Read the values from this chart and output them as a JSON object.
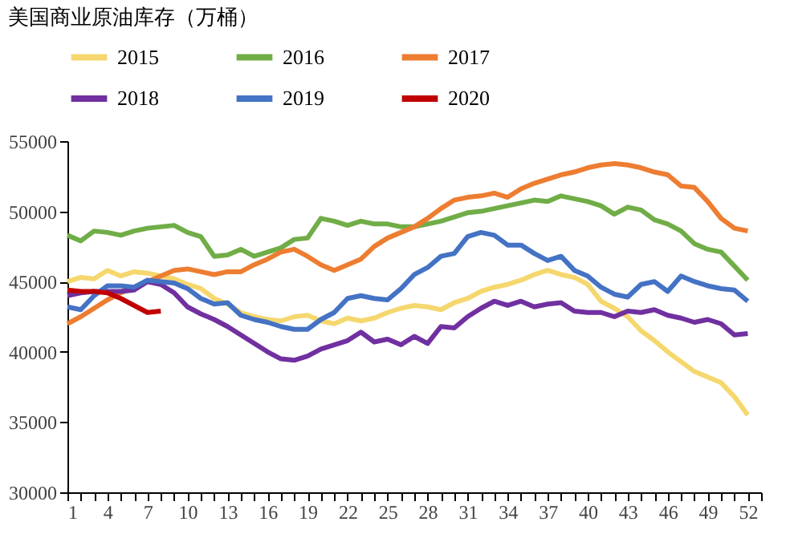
{
  "chart_data": {
    "type": "line",
    "title": "美国商业原油库存（万桶）",
    "legend": "top",
    "grid": false,
    "marker": "none",
    "line_style": "solid",
    "x": [
      1,
      2,
      3,
      4,
      5,
      6,
      7,
      8,
      9,
      10,
      11,
      12,
      13,
      14,
      15,
      16,
      17,
      18,
      19,
      20,
      21,
      22,
      23,
      24,
      25,
      26,
      27,
      28,
      29,
      30,
      31,
      32,
      33,
      34,
      35,
      36,
      37,
      38,
      39,
      40,
      41,
      42,
      43,
      44,
      45,
      46,
      47,
      48,
      49,
      50,
      51,
      52
    ],
    "xlim": [
      1,
      53
    ],
    "xticks": [
      1,
      {
        "value": 2,
        "label": null
      },
      {
        "value": 3,
        "label": null
      },
      4,
      {
        "value": 5,
        "label": null
      },
      {
        "value": 6,
        "label": null
      },
      7,
      {
        "value": 8,
        "label": null
      },
      {
        "value": 9,
        "label": null
      },
      10,
      {
        "value": 11,
        "label": null
      },
      {
        "value": 12,
        "label": null
      },
      13,
      {
        "value": 14,
        "label": null
      },
      {
        "value": 15,
        "label": null
      },
      16,
      {
        "value": 17,
        "label": null
      },
      {
        "value": 18,
        "label": null
      },
      19,
      {
        "value": 20,
        "label": null
      },
      {
        "value": 21,
        "label": null
      },
      22,
      {
        "value": 23,
        "label": null
      },
      {
        "value": 24,
        "label": null
      },
      25,
      {
        "value": 26,
        "label": null
      },
      {
        "value": 27,
        "label": null
      },
      28,
      {
        "value": 29,
        "label": null
      },
      {
        "value": 30,
        "label": null
      },
      31,
      {
        "value": 32,
        "label": null
      },
      {
        "value": 33,
        "label": null
      },
      34,
      {
        "value": 35,
        "label": null
      },
      {
        "value": 36,
        "label": null
      },
      37,
      {
        "value": 38,
        "label": null
      },
      {
        "value": 39,
        "label": null
      },
      40,
      {
        "value": 41,
        "label": null
      },
      {
        "value": 42,
        "label": null
      },
      43,
      {
        "value": 44,
        "label": null
      },
      {
        "value": 45,
        "label": null
      },
      46,
      {
        "value": 47,
        "label": null
      },
      {
        "value": 48,
        "label": null
      },
      49,
      {
        "value": 50,
        "label": null
      },
      {
        "value": 51,
        "label": null
      },
      52,
      {
        "value": 53,
        "label": null
      }
    ],
    "ylim": [
      30000,
      55000
    ],
    "yticks": [
      30000,
      35000,
      40000,
      45000,
      50000,
      55000
    ],
    "series": [
      {
        "name": "2015",
        "color": "#f5d76e",
        "values": [
          45000,
          45300,
          45200,
          45800,
          45400,
          45700,
          45600,
          45400,
          45200,
          44800,
          44500,
          43800,
          43400,
          42800,
          42500,
          42300,
          42200,
          42500,
          42600,
          42200,
          42000,
          42400,
          42200,
          42400,
          42800,
          43100,
          43300,
          43200,
          43000,
          43500,
          43800,
          44300,
          44600,
          44800,
          45100,
          45500,
          45800,
          45500,
          45300,
          44800,
          43600,
          43100,
          42500,
          41500,
          40800,
          40000,
          39300,
          38600,
          38200,
          37800,
          36800,
          35500
        ]
      },
      {
        "name": "2016",
        "color": "#70ad47",
        "values": [
          48300,
          47900,
          48600,
          48500,
          48300,
          48600,
          48800,
          48900,
          49000,
          48500,
          48200,
          46800,
          46900,
          47300,
          46800,
          47100,
          47400,
          48000,
          48100,
          49500,
          49300,
          49000,
          49300,
          49100,
          49100,
          48900,
          48900,
          49100,
          49300,
          49600,
          49900,
          50000,
          50200,
          50400,
          50600,
          50800,
          50700,
          51100,
          50900,
          50700,
          50400,
          49800,
          50300,
          50100,
          49400,
          49100,
          48600,
          47700,
          47300,
          47100,
          46100,
          45100
        ]
      },
      {
        "name": "2017",
        "color": "#ed7d31",
        "values": [
          42000,
          42500,
          43100,
          43700,
          44200,
          44600,
          45000,
          45400,
          45800,
          45900,
          45700,
          45500,
          45700,
          45700,
          46200,
          46600,
          47100,
          47300,
          46800,
          46200,
          45800,
          46200,
          46600,
          47500,
          48100,
          48500,
          48900,
          49500,
          50200,
          50800,
          51000,
          51100,
          51300,
          51000,
          51600,
          52000,
          52300,
          52600,
          52800,
          53100,
          53300,
          53400,
          53300,
          53100,
          52800,
          52600,
          51800,
          51700,
          50700,
          49500,
          48800,
          48600
        ]
      },
      {
        "name": "2018",
        "color": "#7030a0",
        "values": [
          44000,
          44200,
          44300,
          44300,
          44300,
          44400,
          45000,
          44800,
          44200,
          43200,
          42700,
          42300,
          41800,
          41200,
          40600,
          40000,
          39500,
          39400,
          39700,
          40200,
          40500,
          40800,
          41400,
          40700,
          40900,
          40500,
          41100,
          40600,
          41800,
          41700,
          42500,
          43100,
          43600,
          43300,
          43600,
          43200,
          43400,
          43500,
          42900,
          42800,
          42800,
          42500,
          42900,
          42800,
          43000,
          42600,
          42400,
          42100,
          42300,
          42000,
          41200,
          41300
        ]
      },
      {
        "name": "2019",
        "color": "#4472c4",
        "values": [
          43200,
          43000,
          44000,
          44700,
          44700,
          44600,
          45100,
          45000,
          44900,
          44500,
          43800,
          43400,
          43500,
          42600,
          42300,
          42100,
          41800,
          41600,
          41600,
          42300,
          42800,
          43800,
          44000,
          43800,
          43700,
          44500,
          45500,
          46000,
          46800,
          47000,
          48200,
          48500,
          48300,
          47600,
          47600,
          47000,
          46500,
          46800,
          45800,
          45400,
          44600,
          44100,
          43900,
          44800,
          45000,
          44300,
          45400,
          45000,
          44700,
          44500,
          44400,
          43600
        ]
      },
      {
        "name": "2020",
        "color": "#c00000",
        "x": [
          1,
          2,
          3,
          4,
          5,
          6,
          7,
          8
        ],
        "values": [
          44400,
          44300,
          44300,
          44200,
          43800,
          43300,
          42800,
          42900
        ]
      }
    ]
  }
}
